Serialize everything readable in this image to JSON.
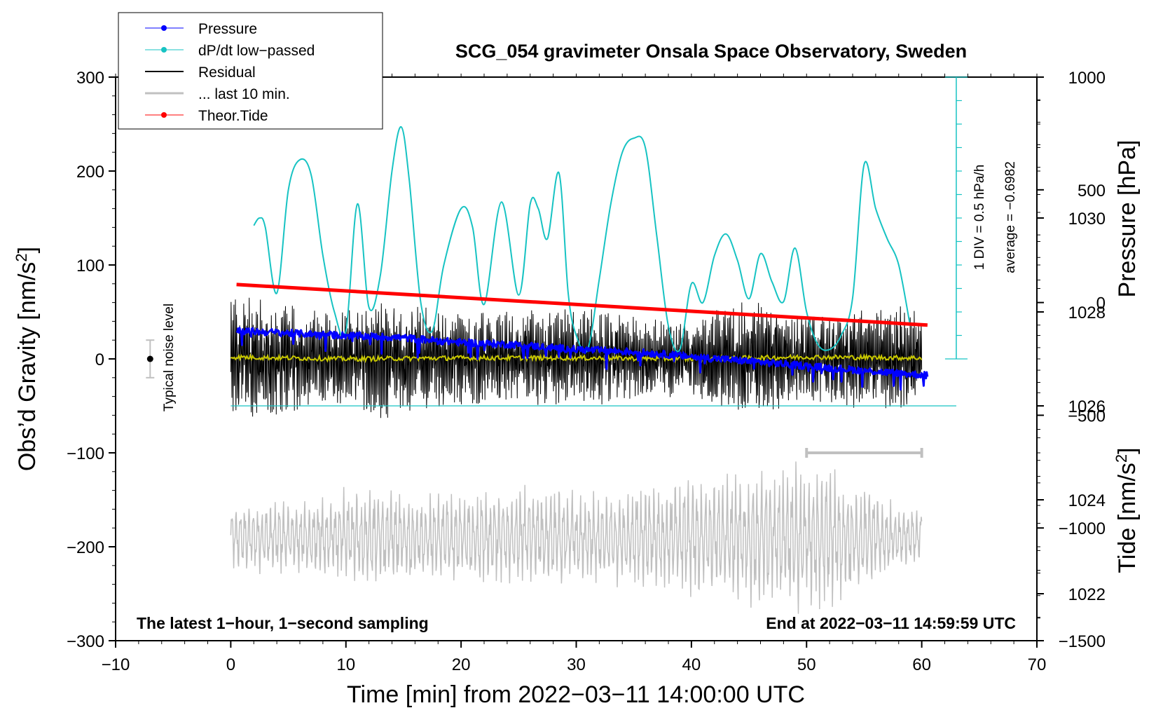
{
  "chart_data": {
    "type": "line",
    "title": "SCG_054 gravimeter Onsala Space Observatory, Sweden",
    "xlabel": "Time [min] from 2022−03−11 14:00:00 UTC",
    "ylabel_left": "Obs’d Gravity [nm/s",
    "ylabel_left_sup": "2",
    "ylabel_left_close": "]",
    "ylabel_pressure": "Pressure [hPa]",
    "ylabel_tide": "Tide [nm/s",
    "ylabel_tide_sup": "2",
    "ylabel_tide_close": "]",
    "xlim": [
      -10,
      70
    ],
    "ylim": [
      -300,
      300
    ],
    "pressure_lim": [
      1021,
      1033
    ],
    "tide_lim": [
      -1500,
      1000
    ],
    "x_ticks": [
      -10,
      0,
      10,
      20,
      30,
      40,
      50,
      60,
      70
    ],
    "x_tick_labels": [
      "−10",
      "0",
      "10",
      "20",
      "30",
      "40",
      "50",
      "60",
      "70"
    ],
    "y_ticks": [
      300,
      200,
      100,
      0,
      -100,
      -200,
      -300
    ],
    "y_tick_labels": [
      "300",
      "200",
      "100",
      "0",
      "−100",
      "−200",
      "−300"
    ],
    "pressure_ticks": [
      1030,
      1028,
      1026,
      1024,
      1022
    ],
    "pressure_tick_labels": [
      "1030",
      "1028",
      "1026",
      "1024",
      "1022"
    ],
    "tide_ticks": [
      1000,
      500,
      0,
      -500,
      -1000,
      -1500
    ],
    "tide_tick_labels": [
      "1000",
      "500",
      "0",
      "−500",
      "−1000",
      "−1500"
    ],
    "annotation_left": "The latest 1−hour, 1−second sampling",
    "annotation_right": "End at 2022−03−11 14:59:59 UTC",
    "noise_label": "Typical noise level",
    "noise_level": {
      "x": -7,
      "y": 0,
      "err": 20
    },
    "last10_marker": {
      "x_start": 50,
      "x_end": 60,
      "y": -100
    },
    "dpdt_scale_label": "1 DIV = 0.5 hPa/h",
    "dpdt_average_label": "average = −0.6982",
    "dpdt_zero_pressure": 1026,
    "dpdt_scale_x": 63,
    "legend": [
      {
        "label": "Pressure",
        "color": "#0000ff"
      },
      {
        "label": "dP/dt low−passed",
        "color": "#17c3c3"
      },
      {
        "label": "Residual",
        "color": "#000000"
      },
      {
        "label": "... last 10 min.",
        "color": "#c0c0c0"
      },
      {
        "label": "Theor.Tide",
        "color": "#ff0000"
      }
    ],
    "series": [
      {
        "name": "Pressure",
        "axis": "pressure",
        "x": [
          0.5,
          5,
          10,
          15,
          20,
          25,
          30,
          35,
          40,
          45,
          50,
          55,
          60.5
        ],
        "values": [
          1027.6,
          1027.55,
          1027.5,
          1027.45,
          1027.35,
          1027.3,
          1027.2,
          1027.15,
          1027.05,
          1026.95,
          1026.85,
          1026.75,
          1026.65
        ]
      },
      {
        "name": "dP/dt low-passed",
        "axis": "gravity",
        "x": [
          2,
          2.5,
          3,
          4,
          5,
          6,
          7,
          8,
          9,
          10,
          11,
          12,
          13,
          14,
          14.8,
          15.5,
          16.5,
          17.5,
          18.5,
          20,
          21,
          22,
          23.5,
          25,
          26,
          26.7,
          27.5,
          28.5,
          29.3,
          30,
          31,
          32,
          33,
          34,
          35,
          36,
          37,
          38,
          39,
          40,
          41,
          42,
          43,
          44,
          45,
          46,
          47,
          48,
          49,
          50,
          51,
          52,
          53,
          54,
          55,
          56,
          57,
          58,
          59
        ],
        "values": [
          142,
          150,
          140,
          70,
          180,
          212,
          195,
          110,
          50,
          30,
          165,
          55,
          90,
          200,
          247,
          190,
          60,
          30,
          100,
          160,
          140,
          58,
          167,
          68,
          165,
          160,
          128,
          198,
          70,
          25,
          10,
          85,
          165,
          220,
          235,
          225,
          130,
          35,
          10,
          80,
          60,
          110,
          133,
          105,
          64,
          112,
          82,
          61,
          118,
          50,
          15,
          10,
          25,
          65,
          207,
          160,
          128,
          100,
          35
        ]
      },
      {
        "name": "Residual",
        "axis": "gravity",
        "x_range": [
          0,
          60
        ],
        "amplitude_envelope": [
          {
            "x": 0,
            "amp": 70
          },
          {
            "x": 5,
            "amp": 55
          },
          {
            "x": 9,
            "amp": 45
          },
          {
            "x": 13,
            "amp": 60
          },
          {
            "x": 19,
            "amp": 45
          },
          {
            "x": 25,
            "amp": 48
          },
          {
            "x": 30,
            "amp": 50
          },
          {
            "x": 36,
            "amp": 42
          },
          {
            "x": 40,
            "amp": 38
          },
          {
            "x": 45,
            "amp": 60
          },
          {
            "x": 50,
            "amp": 42
          },
          {
            "x": 55,
            "amp": 50
          },
          {
            "x": 60,
            "amp": 55
          }
        ]
      },
      {
        "name": "Residual smoothed",
        "axis": "gravity",
        "x": [
          0,
          10,
          20,
          30,
          40,
          50,
          60
        ],
        "values": [
          2,
          0,
          1,
          1,
          0,
          2,
          1
        ]
      },
      {
        "name": "... last 10 min.",
        "axis": "gravity",
        "x_range": [
          0,
          60
        ],
        "baseline": -190,
        "amplitude_envelope": [
          {
            "x": 0,
            "amp": 30
          },
          {
            "x": 7,
            "amp": 38
          },
          {
            "x": 12,
            "amp": 50
          },
          {
            "x": 18,
            "amp": 40
          },
          {
            "x": 27,
            "amp": 48
          },
          {
            "x": 32,
            "amp": 40
          },
          {
            "x": 40,
            "amp": 55
          },
          {
            "x": 47,
            "amp": 65
          },
          {
            "x": 52,
            "amp": 70
          },
          {
            "x": 57,
            "amp": 35
          },
          {
            "x": 60,
            "amp": 25
          }
        ]
      },
      {
        "name": "Theor.Tide",
        "axis": "tide",
        "x": [
          0.5,
          60.5
        ],
        "values": [
          80,
          -100
        ]
      }
    ]
  }
}
